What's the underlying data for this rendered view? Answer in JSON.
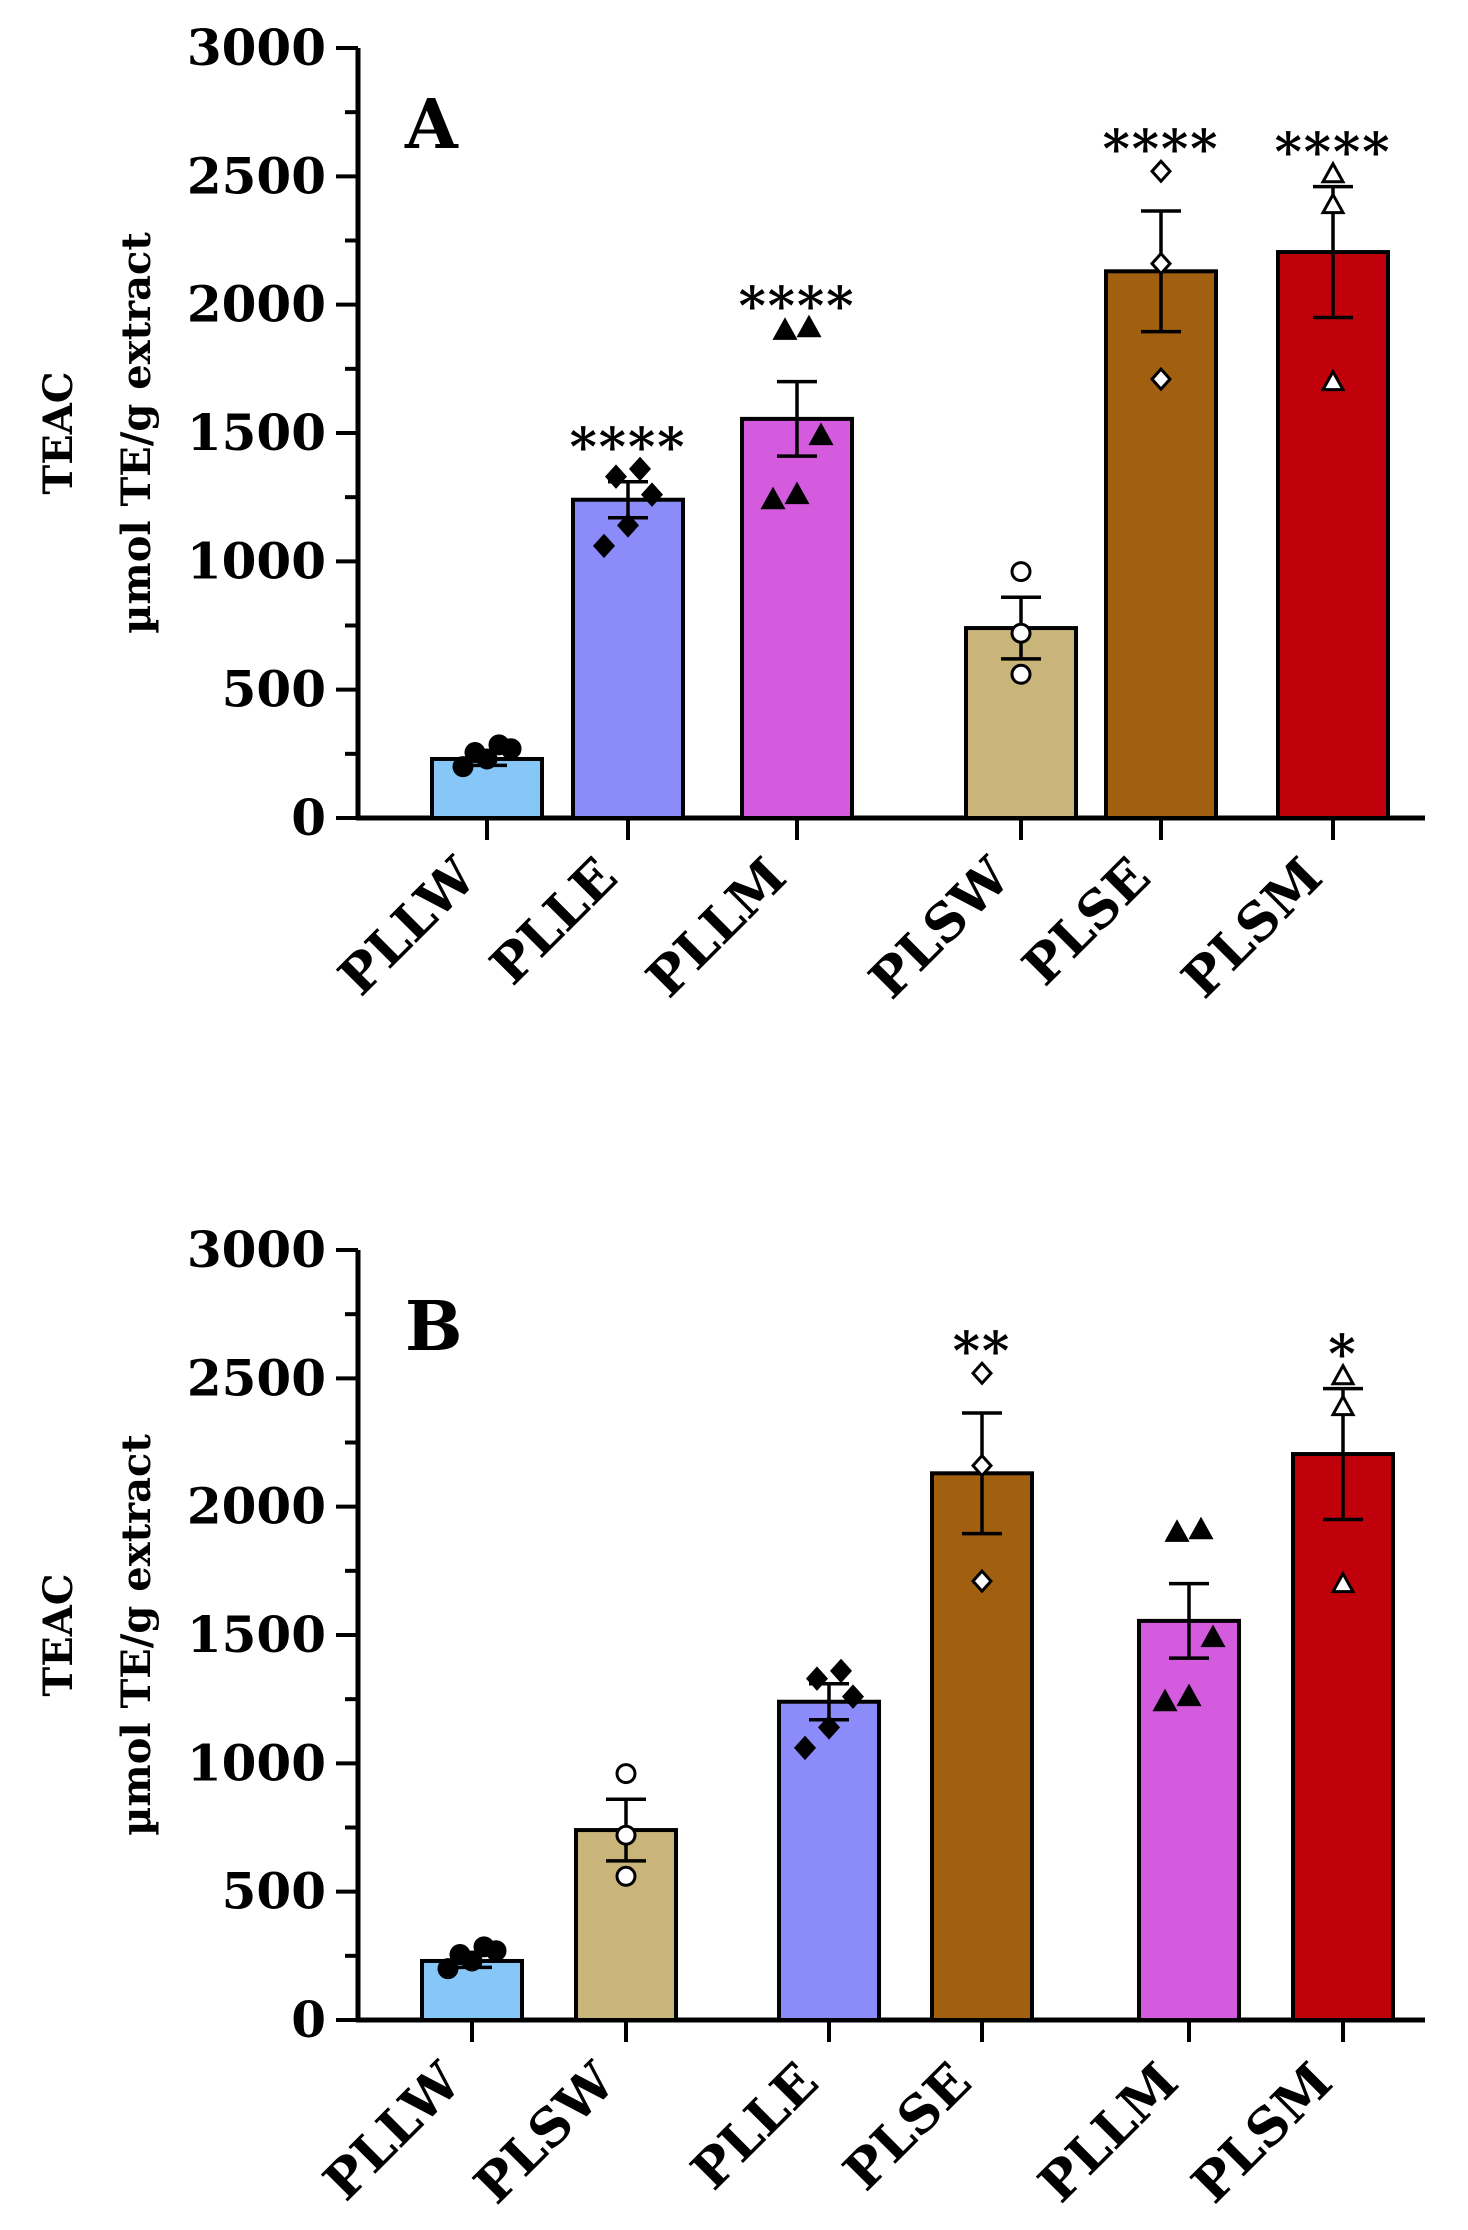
{
  "chart_data": [
    {
      "type": "bar",
      "panel_label": "A",
      "ylabel_line1": "TEAC",
      "ylabel_line2": "µmol TE/g extract",
      "ylim": [
        0,
        3000
      ],
      "yticks": [
        "0",
        "500",
        "1000",
        "1500",
        "2000",
        "2500",
        "3000"
      ],
      "categories": [
        "PLLW",
        "PLLE",
        "PLLM",
        "PLSW",
        "PLSE",
        "PLSM"
      ],
      "values": [
        230,
        1240,
        1555,
        740,
        2130,
        2205
      ],
      "errors": [
        25,
        70,
        145,
        120,
        235,
        255
      ],
      "colors": [
        "#87c7f7",
        "#8b8bfa",
        "#d45ade",
        "#c9b57a",
        "#a0600f",
        "#c0000a"
      ],
      "markers": [
        "circle-filled",
        "diamond-filled",
        "triangle-filled",
        "circle-open",
        "diamond-open",
        "triangle-open"
      ],
      "points": [
        [
          200,
          230,
          270,
          255,
          285
        ],
        [
          1060,
          1140,
          1260,
          1330,
          1360
        ],
        [
          1240,
          1260,
          1490,
          1900,
          1910
        ],
        [
          560,
          720,
          960
        ],
        [
          1710,
          2160,
          2520
        ],
        [
          1700,
          2390,
          2510
        ]
      ],
      "significance": [
        "",
        "****",
        "****",
        "",
        "****",
        "****"
      ]
    },
    {
      "type": "bar",
      "panel_label": "B",
      "ylabel_line1": "TEAC",
      "ylabel_line2": "µmol TE/g extract",
      "ylim": [
        0,
        3000
      ],
      "yticks": [
        "0",
        "500",
        "1000",
        "1500",
        "2000",
        "2500",
        "3000"
      ],
      "categories": [
        "PLLW",
        "PLSW",
        "PLLE",
        "PLSE",
        "PLLM",
        "PLSM"
      ],
      "values": [
        230,
        740,
        1240,
        2130,
        1555,
        2205
      ],
      "errors": [
        25,
        120,
        70,
        235,
        145,
        255
      ],
      "colors": [
        "#87c7f7",
        "#c9b57a",
        "#8b8bfa",
        "#a0600f",
        "#d45ade",
        "#c0000a"
      ],
      "markers": [
        "circle-filled",
        "circle-open",
        "diamond-filled",
        "diamond-open",
        "triangle-filled",
        "triangle-open"
      ],
      "points": [
        [
          200,
          230,
          270,
          255,
          285
        ],
        [
          560,
          720,
          960
        ],
        [
          1060,
          1140,
          1260,
          1330,
          1360
        ],
        [
          1710,
          2160,
          2520
        ],
        [
          1240,
          1260,
          1490,
          1900,
          1910
        ],
        [
          1700,
          2390,
          2510
        ]
      ],
      "significance": [
        "",
        "",
        "",
        "**",
        "",
        "*"
      ]
    }
  ]
}
